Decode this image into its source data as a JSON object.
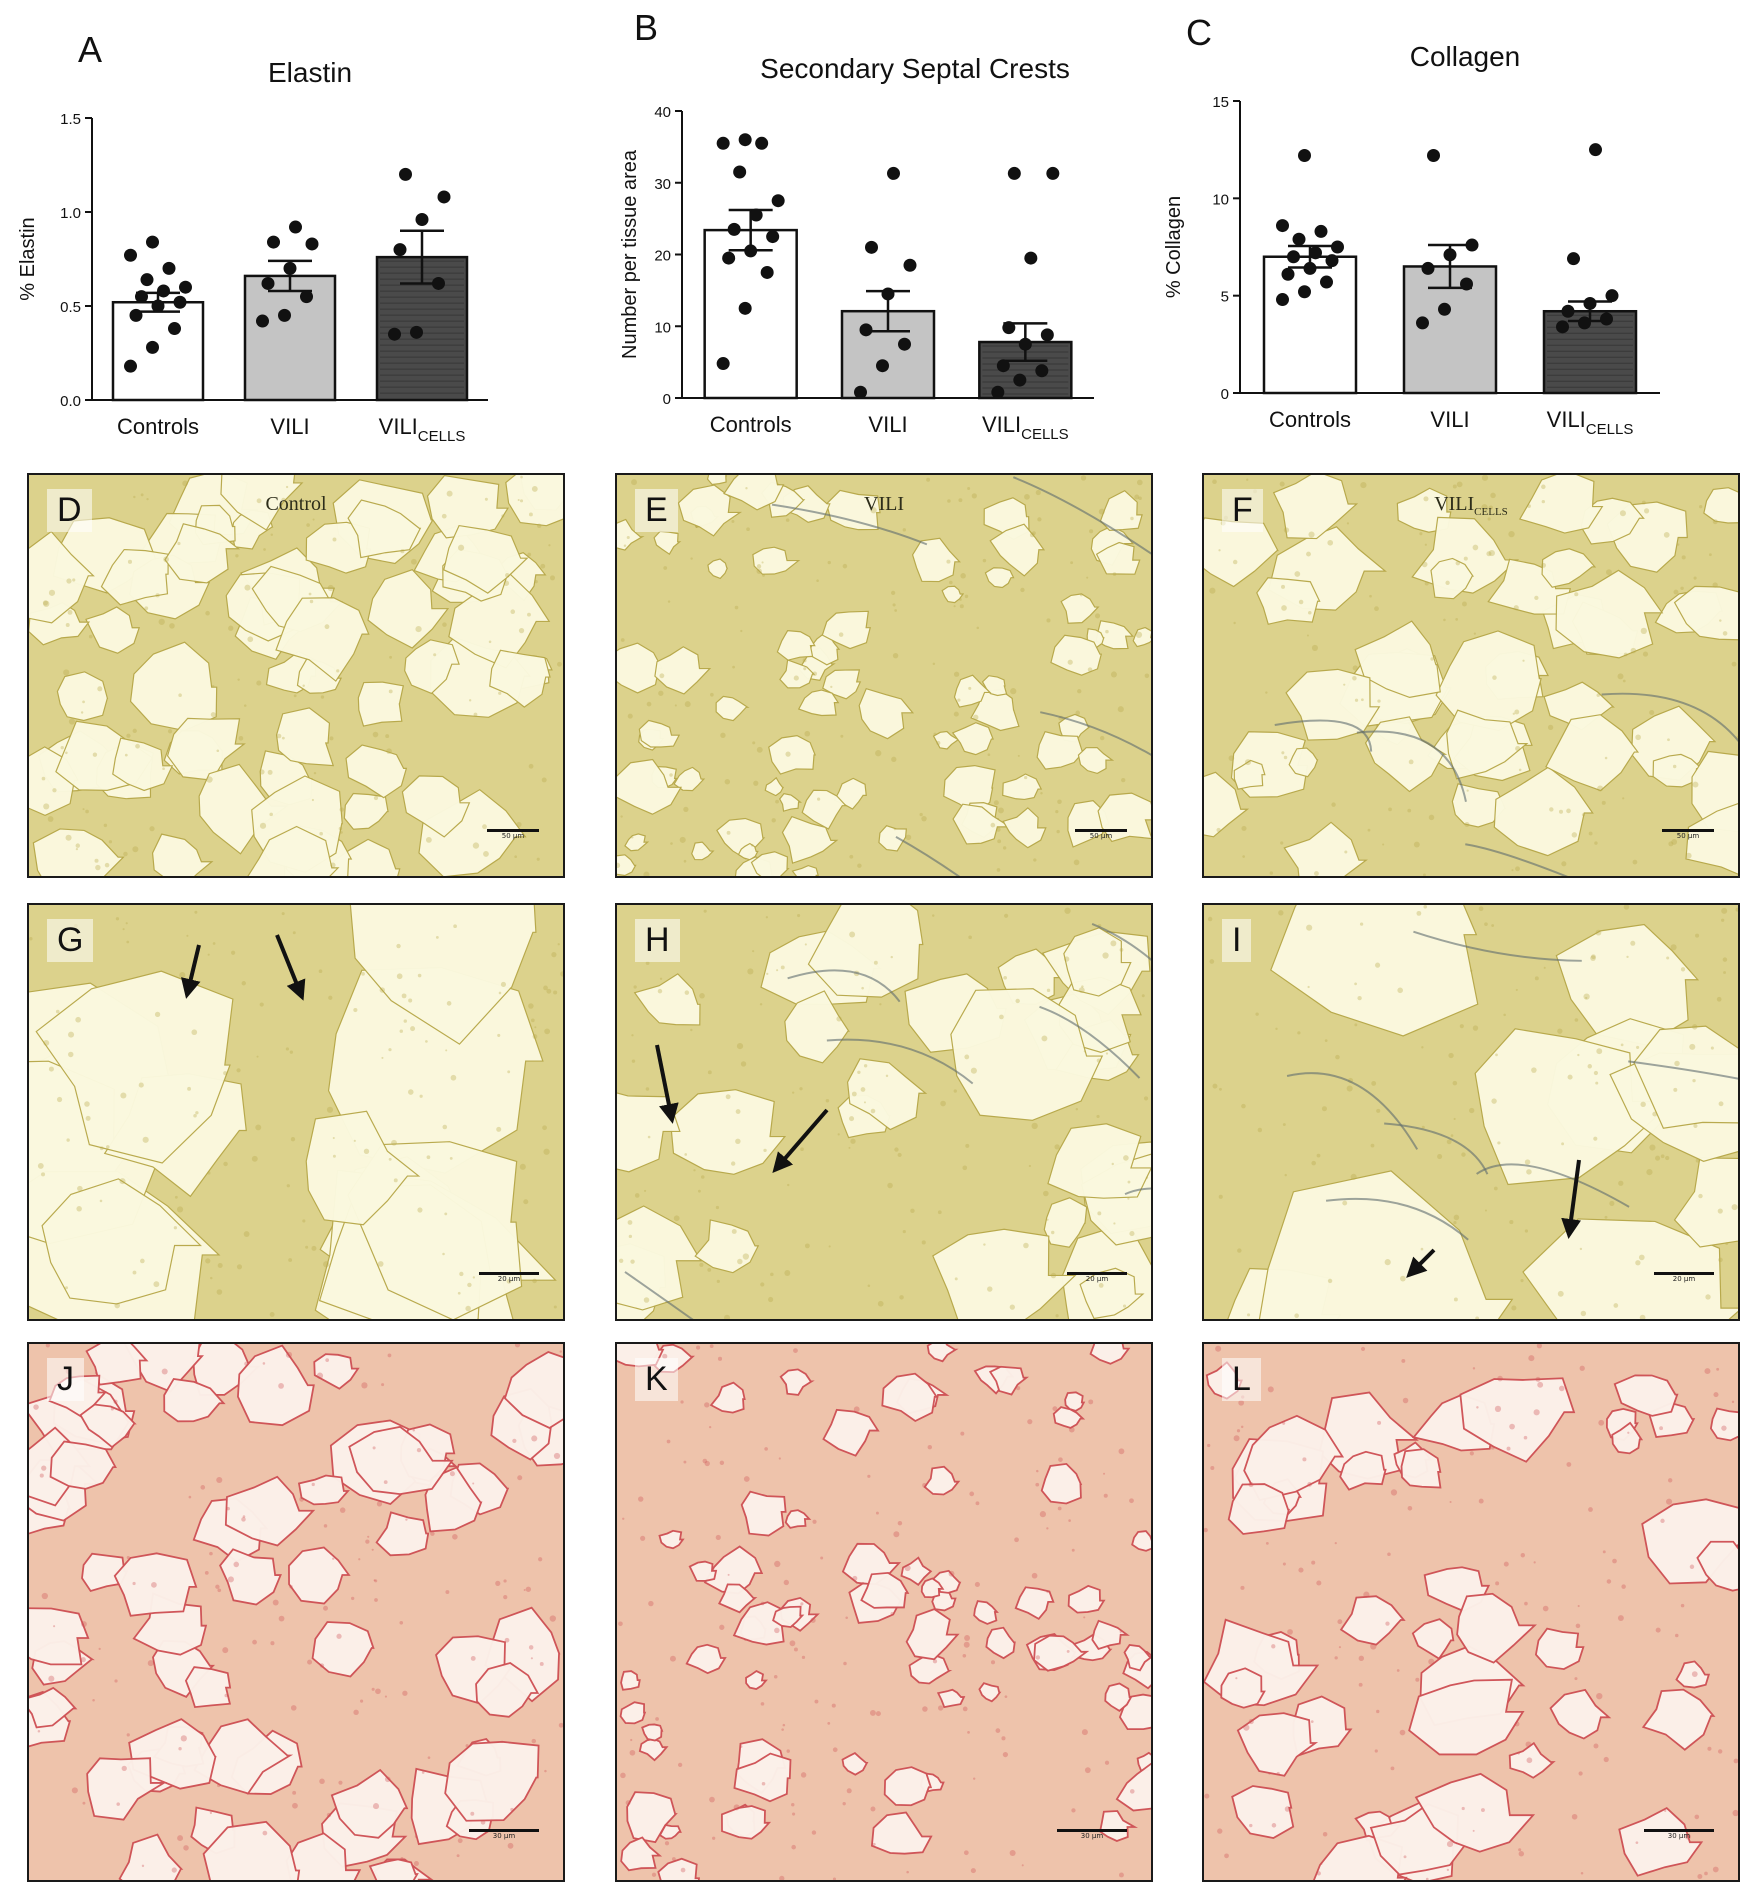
{
  "chart_data": [
    {
      "type": "bar",
      "panel_letter": "A",
      "title": "Elastin",
      "ylabel": "% Elastin",
      "xlabel": "",
      "ylim": [
        0,
        1.5
      ],
      "yticks": [
        "0.0",
        "0.5",
        "1.0",
        "1.5"
      ],
      "categories": [
        {
          "main": "Controls",
          "sub": ""
        },
        {
          "main": "VILI",
          "sub": ""
        },
        {
          "main": "VILI",
          "sub": "CELLS"
        }
      ],
      "values": [
        0.52,
        0.66,
        0.76
      ],
      "sem": [
        0.05,
        0.08,
        0.14
      ],
      "bar_colors": [
        "#ffffff",
        "#c4c4c4",
        "#4a4a4a"
      ],
      "points": [
        [
          0.18,
          0.28,
          0.38,
          0.45,
          0.5,
          0.52,
          0.55,
          0.58,
          0.6,
          0.64,
          0.7,
          0.77,
          0.84
        ],
        [
          0.42,
          0.45,
          0.55,
          0.62,
          0.7,
          0.83,
          0.84,
          0.92
        ],
        [
          0.35,
          0.36,
          0.62,
          0.8,
          0.96,
          1.08,
          1.2
        ]
      ]
    },
    {
      "type": "bar",
      "panel_letter": "B",
      "title": "Secondary Septal Crests",
      "ylabel": "Number per tissue area",
      "xlabel": "",
      "ylim": [
        0,
        40
      ],
      "yticks": [
        "0",
        "10",
        "20",
        "30",
        "40"
      ],
      "categories": [
        {
          "main": "Controls",
          "sub": ""
        },
        {
          "main": "VILI",
          "sub": ""
        },
        {
          "main": "VILI",
          "sub": "CELLS"
        }
      ],
      "values": [
        23.4,
        12.1,
        7.8
      ],
      "sem": [
        2.8,
        2.8,
        2.6
      ],
      "bar_colors": [
        "#ffffff",
        "#c4c4c4",
        "#4a4a4a"
      ],
      "points": [
        [
          4.8,
          12.5,
          17.5,
          19.5,
          20.5,
          22.5,
          23.5,
          25.5,
          27.5,
          31.5,
          35.5,
          35.5,
          36
        ],
        [
          0.8,
          4.5,
          7.5,
          9.5,
          14.5,
          18.5,
          21,
          31.3
        ],
        [
          0.8,
          2.5,
          3.8,
          4.5,
          7.5,
          8.8,
          9.8,
          19.5,
          31.3,
          31.3
        ]
      ]
    },
    {
      "type": "bar",
      "panel_letter": "C",
      "title": "Collagen",
      "ylabel": "% Collagen",
      "xlabel": "",
      "ylim": [
        0,
        15
      ],
      "yticks": [
        "0",
        "5",
        "10",
        "15"
      ],
      "categories": [
        {
          "main": "Controls",
          "sub": ""
        },
        {
          "main": "VILI",
          "sub": ""
        },
        {
          "main": "VILI",
          "sub": "CELLS"
        }
      ],
      "values": [
        7.0,
        6.5,
        4.2
      ],
      "sem": [
        0.55,
        1.1,
        0.5
      ],
      "bar_colors": [
        "#ffffff",
        "#c4c4c4",
        "#4a4a4a"
      ],
      "points": [
        [
          4.8,
          5.2,
          5.7,
          6.1,
          6.4,
          6.8,
          7.0,
          7.2,
          7.5,
          7.9,
          8.3,
          8.6,
          12.2
        ],
        [
          3.6,
          4.3,
          5.6,
          6.4,
          7.1,
          7.6,
          12.2
        ],
        [
          3.4,
          3.6,
          3.8,
          4.2,
          4.6,
          5.0,
          6.9,
          12.5
        ]
      ]
    }
  ],
  "micrographs": [
    {
      "letter": "D",
      "title_main": "Control",
      "title_sub": "",
      "scale": "50 µm",
      "stain": "yellow",
      "texture": "open"
    },
    {
      "letter": "E",
      "title_main": "VILI",
      "title_sub": "",
      "scale": "50 µm",
      "stain": "yellow",
      "texture": "dense"
    },
    {
      "letter": "F",
      "title_main": "VILI",
      "title_sub": "CELLS",
      "scale": "50 µm",
      "stain": "yellow",
      "texture": "mid"
    },
    {
      "letter": "G",
      "title_main": "",
      "title_sub": "",
      "scale": "20 µm",
      "stain": "yellow",
      "texture": "zoom-open"
    },
    {
      "letter": "H",
      "title_main": "",
      "title_sub": "",
      "scale": "20 µm",
      "stain": "yellow",
      "texture": "zoom-dense"
    },
    {
      "letter": "I",
      "title_main": "",
      "title_sub": "",
      "scale": "20 µm",
      "stain": "yellow",
      "texture": "zoom-mid"
    },
    {
      "letter": "J",
      "title_main": "",
      "title_sub": "",
      "scale": "30 µm",
      "stain": "red",
      "texture": "open"
    },
    {
      "letter": "K",
      "title_main": "",
      "title_sub": "",
      "scale": "30 µm",
      "stain": "red",
      "texture": "dense"
    },
    {
      "letter": "L",
      "title_main": "",
      "title_sub": "",
      "scale": "30 µm",
      "stain": "red",
      "texture": "mid"
    }
  ],
  "colors": {
    "yellow_bg": "#fbf9df",
    "yellow_tissue": "#dcd28c",
    "yellow_edge": "#b7a84a",
    "red_bg": "#fcf1ea",
    "red_tissue": "#eec3ab",
    "red_edge": "#cf5256",
    "fiber": "#5e6a6e"
  }
}
